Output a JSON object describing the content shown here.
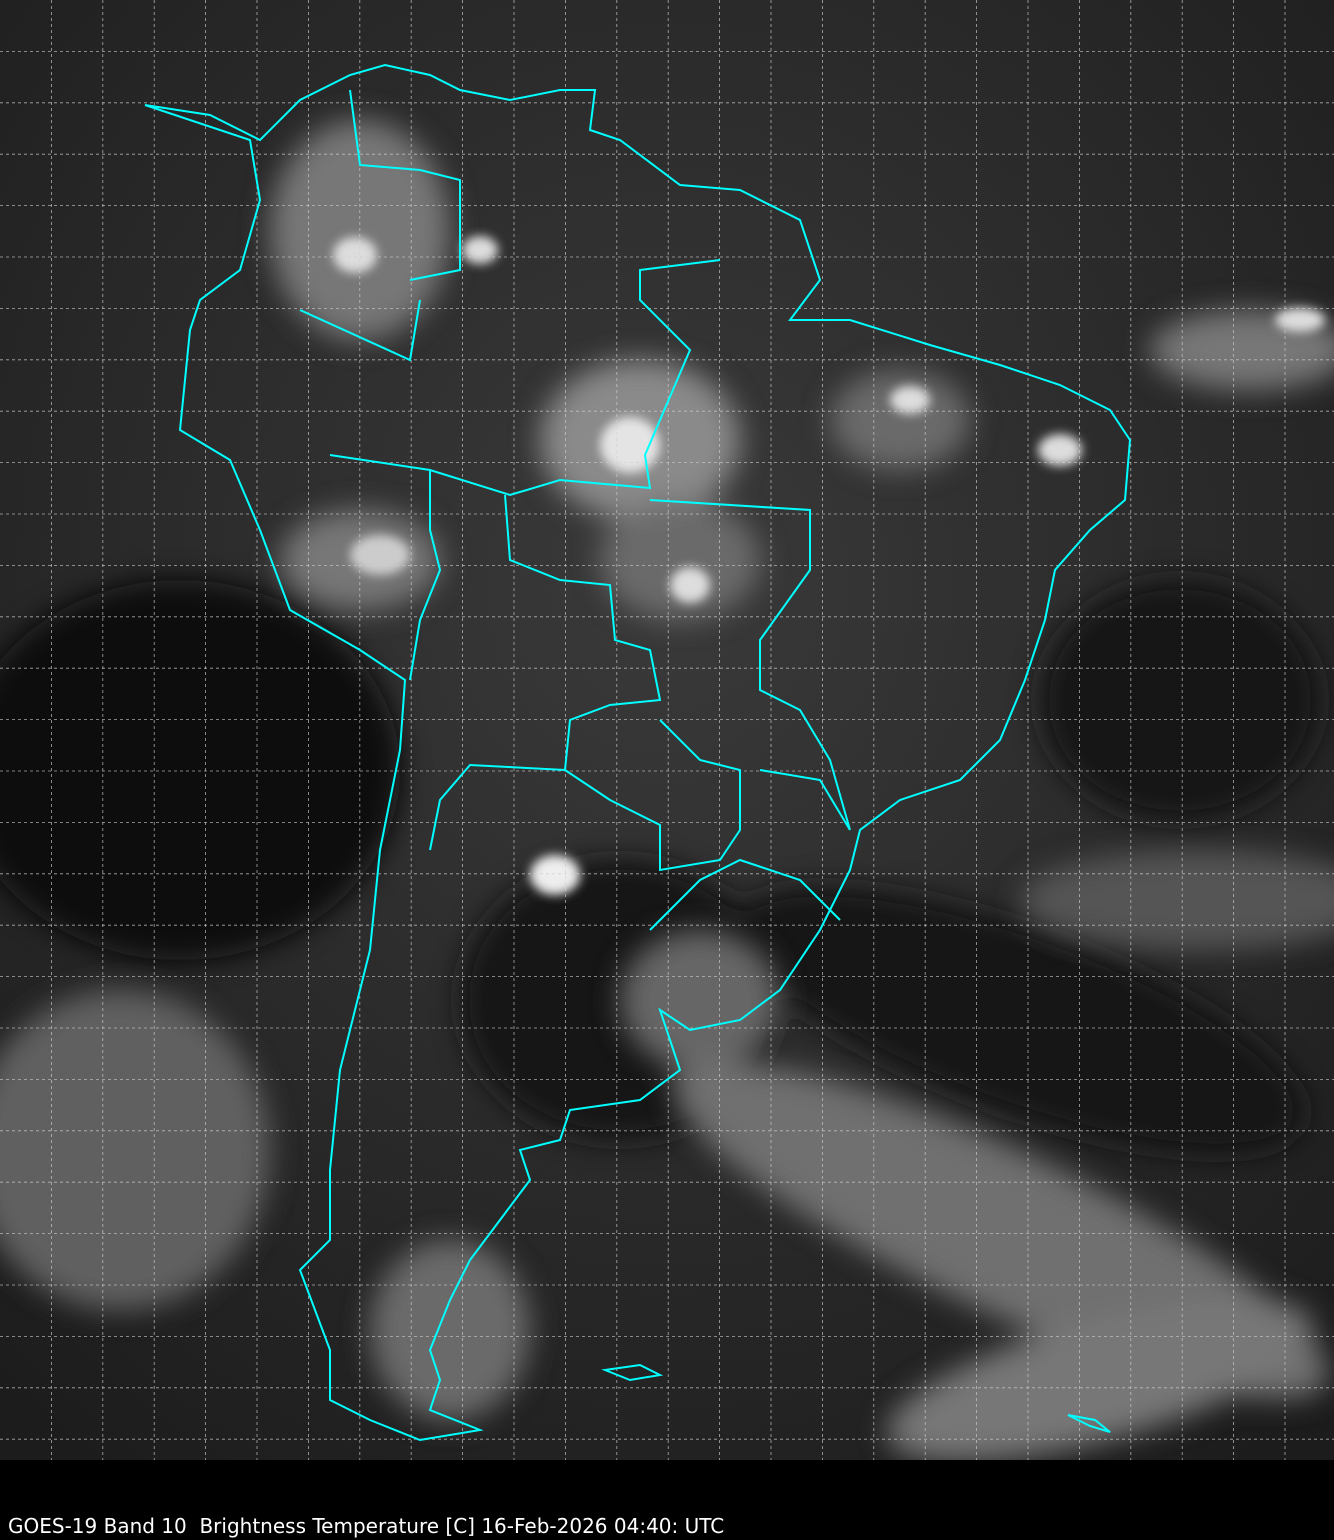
{
  "caption": "GOES-19 Band 10  Brightness Temperature [C] 16-Feb-2026 04:40: UTC",
  "colors": {
    "background": "#000000",
    "borders": "#00ffff",
    "grid": "#d0d0d0",
    "caption_text": "#ffffff"
  },
  "grid": {
    "rows": 28,
    "cols": 26,
    "style": "dashed"
  }
}
